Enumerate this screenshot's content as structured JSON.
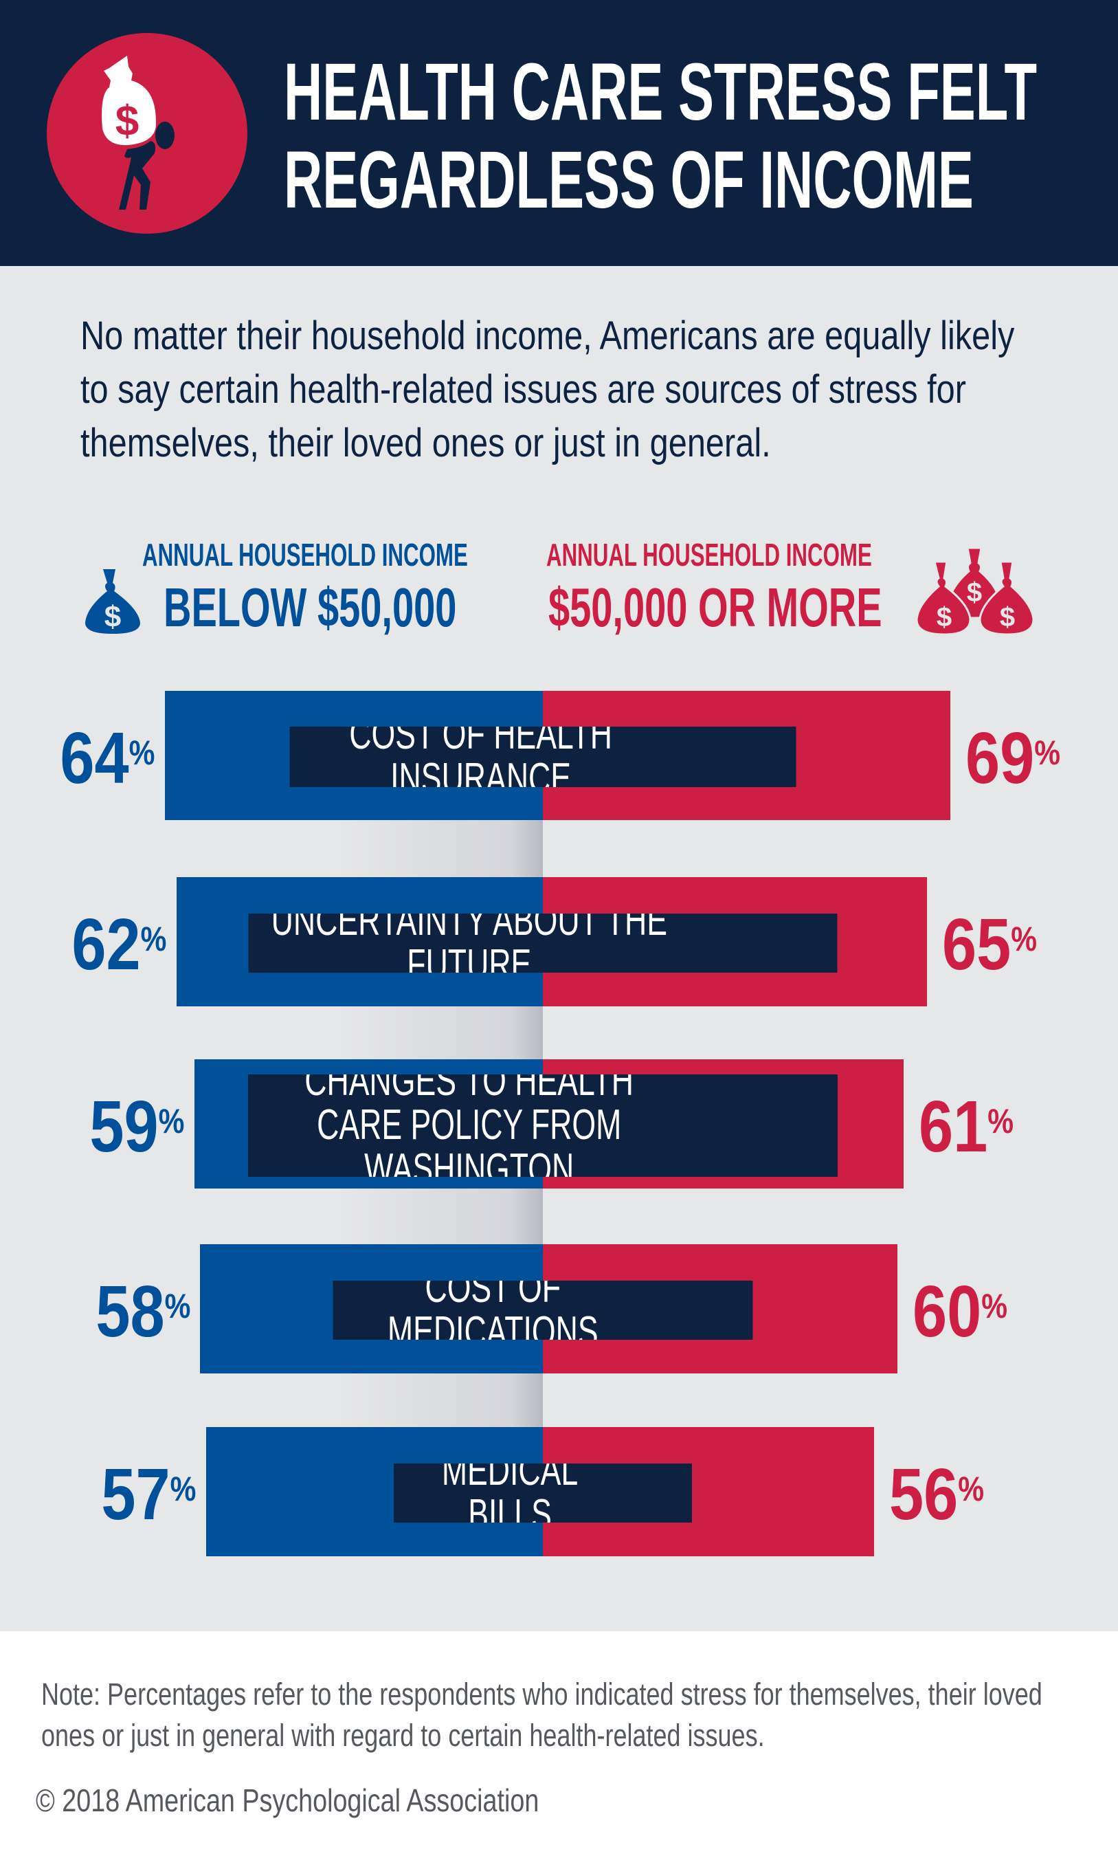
{
  "header": {
    "title": "HEALTH CARE STRESS FELT REGARDLESS OF INCOME",
    "icon": "person-carrying-money-bag-icon"
  },
  "intro": "No matter their household income, Americans are equally likely to say certain health-related issues are sources of stress for themselves, their loved ones or just in general.",
  "legend": {
    "left": {
      "caption": "ANNUAL HOUSEHOLD INCOME",
      "value": "BELOW $50,000",
      "icon": "money-bag-icon"
    },
    "right": {
      "caption": "ANNUAL HOUSEHOLD INCOME",
      "value": "$50,000 OR MORE",
      "icon": "money-bags-icon"
    }
  },
  "colors": {
    "navy": "#0c2240",
    "blue": "#00509a",
    "red": "#cc1f43",
    "background": "#e6e7e9"
  },
  "chart_data": {
    "type": "bar",
    "orientation": "diverging-horizontal",
    "categories": [
      "COST OF HEALTH INSURANCE",
      "UNCERTAINTY ABOUT THE FUTURE",
      "CHANGES TO HEALTH CARE POLICY FROM WASHINGTON",
      "COST OF MEDICATIONS",
      "MEDICAL BILLS"
    ],
    "series": [
      {
        "name": "BELOW $50,000",
        "color": "#00509a",
        "values": [
          64,
          62,
          59,
          58,
          57
        ]
      },
      {
        "name": "$50,000 OR MORE",
        "color": "#cc1f43",
        "values": [
          69,
          65,
          61,
          60,
          56
        ]
      }
    ],
    "unit": "%",
    "grid": false
  },
  "footer": {
    "note": "Note: Percentages refer to the respondents who indicated stress for themselves, their loved ones or just in general with regard to certain health-related issues.",
    "copyright": "© 2018 American Psychological Association"
  }
}
